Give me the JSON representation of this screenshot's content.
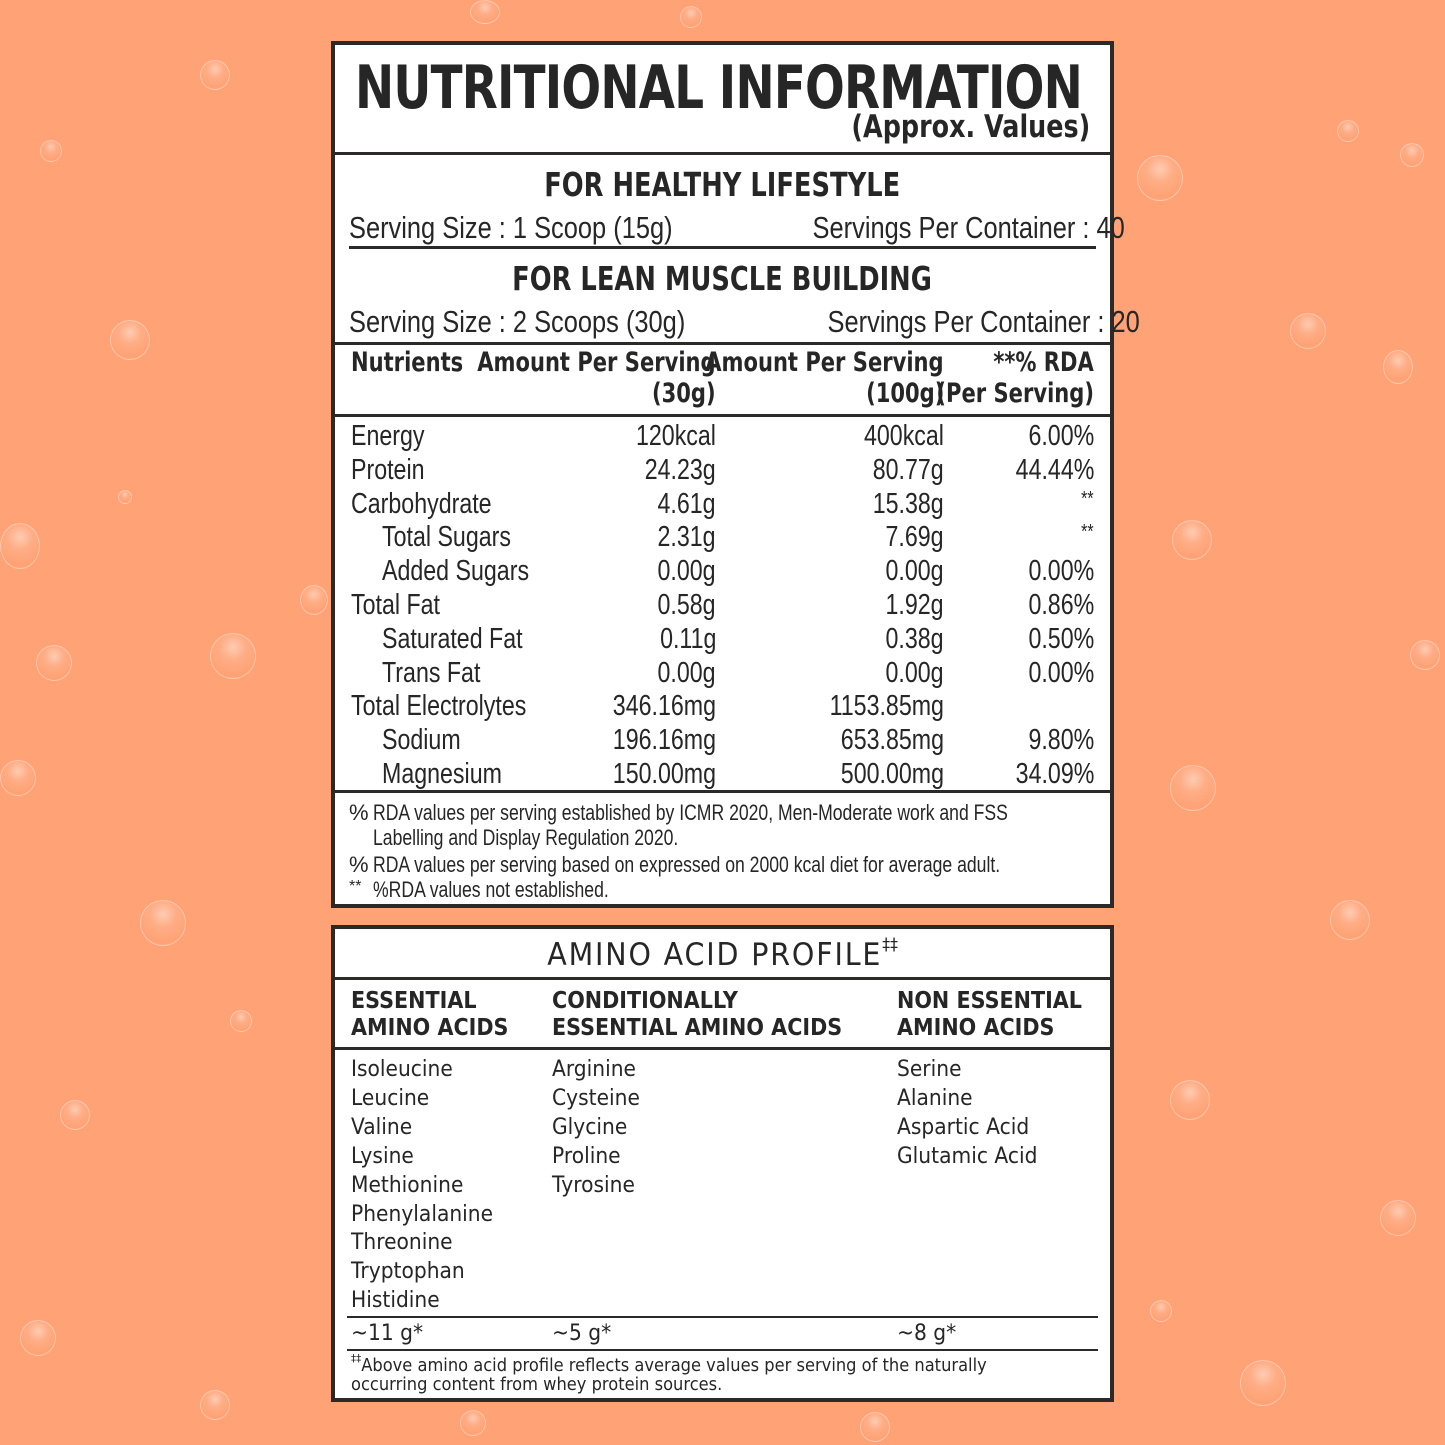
{
  "colors": {
    "background": "#ffa275",
    "panel_bg": "#ffffff",
    "border": "#2c2a29",
    "text": "#262626"
  },
  "nutrition": {
    "title": "NUTRITIONAL INFORMATION",
    "subtitle": "(Approx. Values)",
    "servings": [
      {
        "heading": "FOR HEALTHY LIFESTYLE",
        "serving_size": "Serving Size : 1 Scoop (15g)",
        "servings_per_container": "Servings Per Container : 40"
      },
      {
        "heading": "FOR LEAN MUSCLE BUILDING",
        "serving_size": "Serving Size : 2 Scoops (30g)",
        "servings_per_container": "Servings Per Container : 20"
      }
    ],
    "table": {
      "headers": {
        "nutrients": "Nutrients",
        "per_serving_line1": "Amount Per Serving",
        "per_serving_line2": "(30g)",
        "per_100g_line1": "Amount Per Serving",
        "per_100g_line2": "(100g)",
        "rda_line1": "**% RDA",
        "rda_line2": "(Per Serving)"
      },
      "rows": [
        {
          "name": "Energy",
          "per_serving": "120kcal",
          "per_100g": "400kcal",
          "rda": "6.00%",
          "indent": false
        },
        {
          "name": "Protein",
          "per_serving": "24.23g",
          "per_100g": "80.77g",
          "rda": "44.44%",
          "indent": false
        },
        {
          "name": "Carbohydrate",
          "per_serving": "4.61g",
          "per_100g": "15.38g",
          "rda": "**",
          "indent": false
        },
        {
          "name": "Total Sugars",
          "per_serving": "2.31g",
          "per_100g": "7.69g",
          "rda": "**",
          "indent": true
        },
        {
          "name": "Added Sugars",
          "per_serving": "0.00g",
          "per_100g": "0.00g",
          "rda": "0.00%",
          "indent": true
        },
        {
          "name": "Total Fat",
          "per_serving": "0.58g",
          "per_100g": "1.92g",
          "rda": "0.86%",
          "indent": false
        },
        {
          "name": "Saturated Fat",
          "per_serving": "0.11g",
          "per_100g": "0.38g",
          "rda": "0.50%",
          "indent": true
        },
        {
          "name": "Trans Fat",
          "per_serving": "0.00g",
          "per_100g": "0.00g",
          "rda": "0.00%",
          "indent": true
        },
        {
          "name": "Total Electrolytes",
          "per_serving": "346.16mg",
          "per_100g": "1153.85mg",
          "rda": "",
          "indent": false
        },
        {
          "name": "Sodium",
          "per_serving": "196.16mg",
          "per_100g": "653.85mg",
          "rda": "9.80%",
          "indent": true
        },
        {
          "name": "Magnesium",
          "per_serving": "150.00mg",
          "per_100g": "500.00mg",
          "rda": "34.09%",
          "indent": true
        }
      ]
    },
    "footnotes": [
      {
        "mark": "%",
        "line1": "RDA values per serving established by ICMR 2020, Men-Moderate work and FSS",
        "line2": "Labelling and Display Regulation 2020."
      },
      {
        "mark": "%",
        "line1": "RDA values per serving based on expressed on 2000 kcal diet for average adult."
      },
      {
        "mark": "**",
        "line1": "%RDA values not established."
      }
    ]
  },
  "amino": {
    "title": "AMINO ACID PROFILE",
    "title_mark": "‡‡",
    "columns": [
      {
        "heading": "ESSENTIAL\nAMINO ACIDS",
        "items": [
          "Isoleucine",
          "Leucine",
          "Valine",
          "Lysine",
          "Methionine",
          "Phenylalanine",
          "Threonine",
          "Tryptophan",
          "Histidine"
        ],
        "total": "~11 g*"
      },
      {
        "heading": "CONDITIONALLY\nESSENTIAL AMINO ACIDS",
        "items": [
          "Arginine",
          "Cysteine",
          "Glycine",
          "Proline",
          "Tyrosine"
        ],
        "total": "~5 g*"
      },
      {
        "heading": "NON ESSENTIAL\nAMINO ACIDS",
        "items": [
          "Serine",
          "Alanine",
          "Aspartic Acid",
          "Glutamic Acid"
        ],
        "total": "~8 g*"
      }
    ],
    "note_mark": "‡‡",
    "note_line1": "Above amino acid profile reflects average values per serving of the naturally",
    "note_line2": "occurring content from whey protein sources."
  }
}
